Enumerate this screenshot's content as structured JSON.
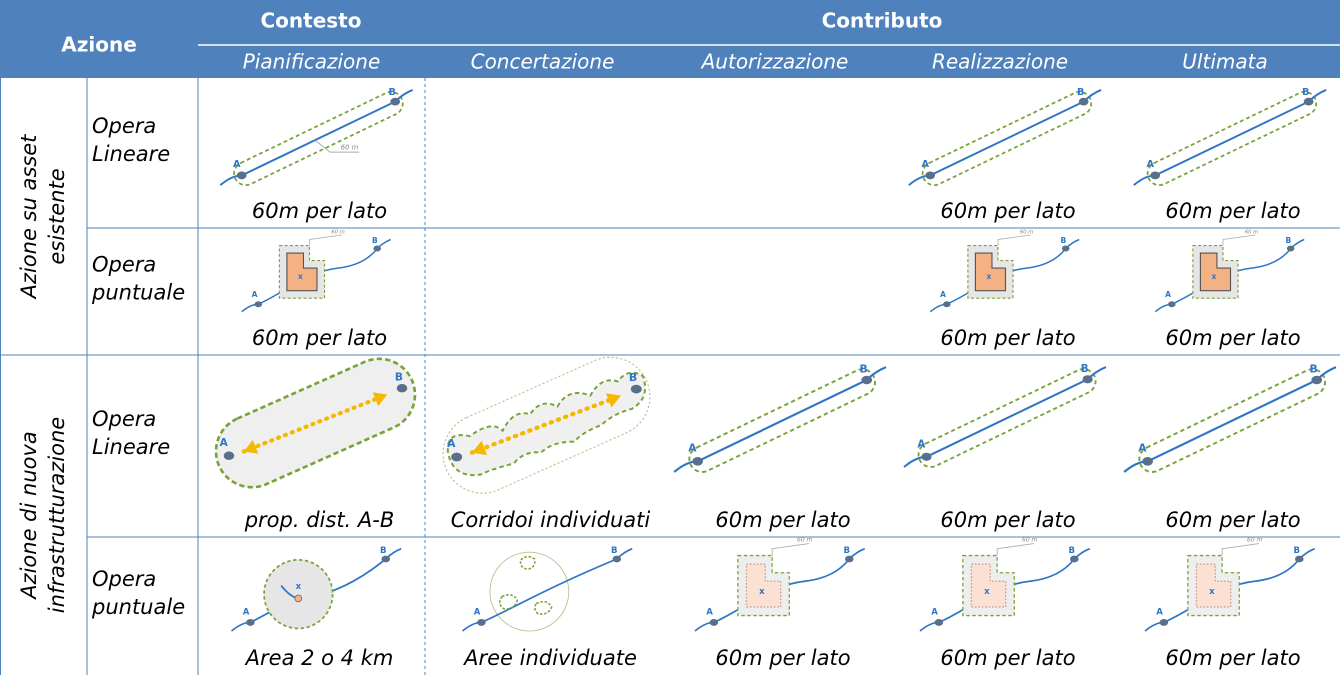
{
  "header": {
    "azione": "Azione",
    "contesto": "Contesto",
    "contributo": "Contributo",
    "phases": [
      "Pianificazione",
      "Concertazione",
      "Autorizzazione",
      "Realizzazione",
      "Ultimata"
    ]
  },
  "groups": [
    {
      "label": [
        "Azione su asset",
        "esistente"
      ],
      "rows": [
        {
          "label": [
            "Opera",
            "Lineare"
          ],
          "cells": [
            "60m per lato",
            null,
            null,
            "60m per lato",
            "60m per lato"
          ]
        },
        {
          "label": [
            "Opera",
            "puntuale"
          ],
          "cells": [
            "60m per lato",
            null,
            null,
            "60m per lato",
            "60m per lato"
          ]
        }
      ]
    },
    {
      "label": [
        "Azione di nuova",
        "infrastrutturazione"
      ],
      "rows": [
        {
          "label": [
            "Opera",
            "Lineare"
          ],
          "cells": [
            "prop. dist. A-B",
            "Corridoi individuati",
            "60m per lato",
            "60m per lato",
            "60m per lato"
          ]
        },
        {
          "label": [
            "Opera",
            "puntuale"
          ],
          "cells": [
            "Area 2 o 4 km",
            "Aree individuate",
            "60m per lato",
            "60m per lato",
            "60m per lato"
          ]
        }
      ]
    }
  ],
  "icon_labels": {
    "start": "A",
    "end": "B",
    "distance": "60 m",
    "center": "x"
  }
}
